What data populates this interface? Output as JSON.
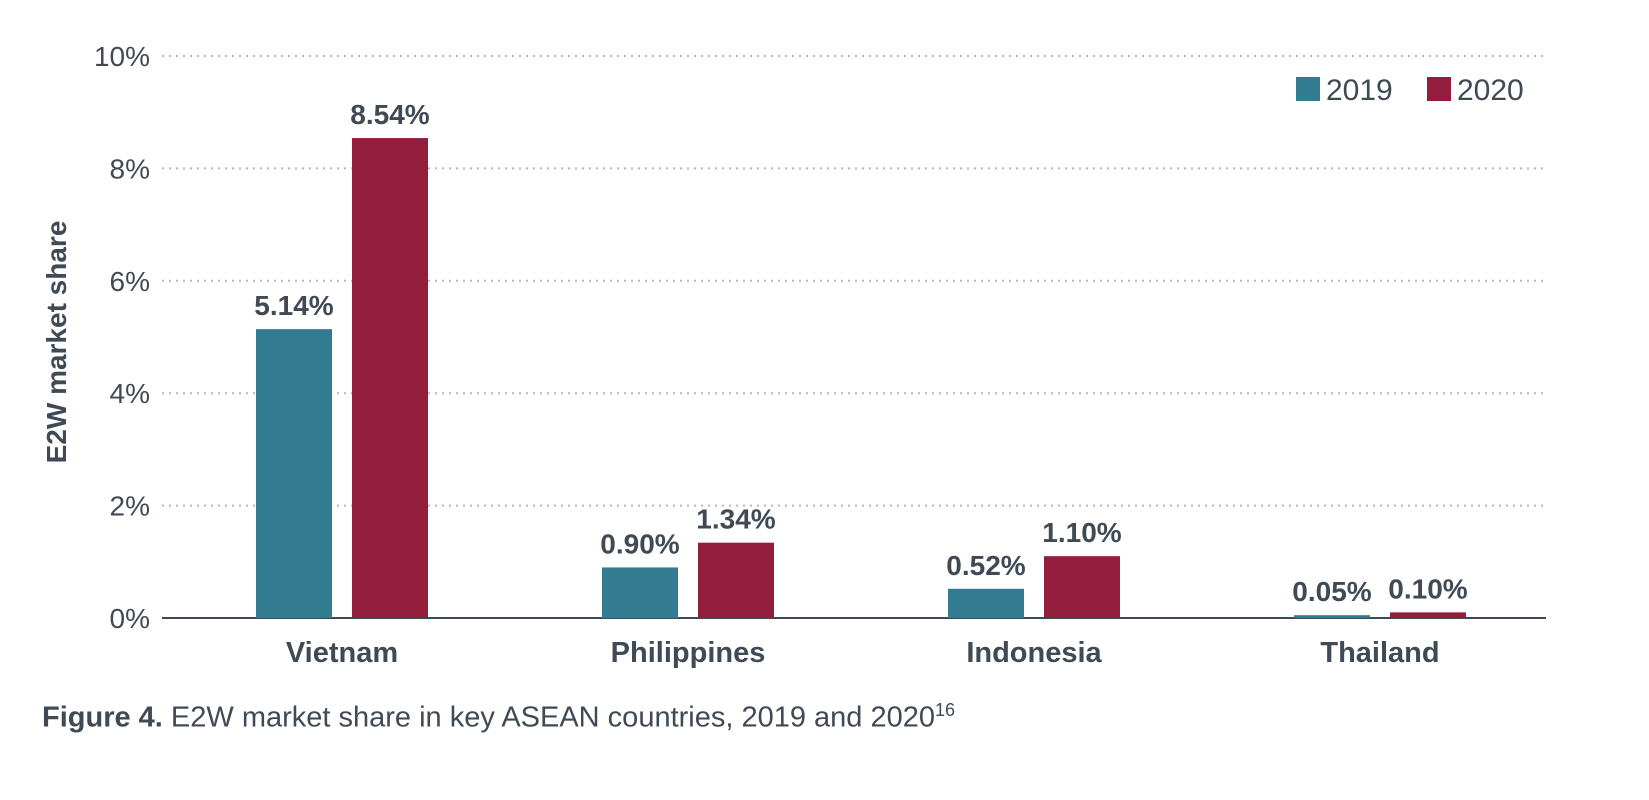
{
  "chart_data": {
    "type": "bar",
    "categories": [
      "Vietnam",
      "Philippines",
      "Indonesia",
      "Thailand"
    ],
    "series": [
      {
        "name": "2019",
        "color": "#337b90",
        "values": [
          5.14,
          0.9,
          0.52,
          0.05
        ],
        "labels": [
          "5.14%",
          "0.90%",
          "0.52%",
          "0.05%"
        ]
      },
      {
        "name": "2020",
        "color": "#921d3c",
        "values": [
          8.54,
          1.34,
          1.1,
          0.1
        ],
        "labels": [
          "8.54%",
          "1.34%",
          "1.10%",
          "0.10%"
        ]
      }
    ],
    "ylabel": "E2W market share",
    "ylim": [
      0,
      10
    ],
    "yticks": [
      0,
      2,
      4,
      6,
      8,
      10
    ],
    "ytick_labels": [
      "0%",
      "2%",
      "4%",
      "6%",
      "8%",
      "10%"
    ],
    "grid": true,
    "legend": "top-right"
  },
  "caption": {
    "figure_label": "Figure 4.",
    "text": " E2W market share in key ASEAN countries, 2019 and 2020",
    "superscript": "16"
  }
}
